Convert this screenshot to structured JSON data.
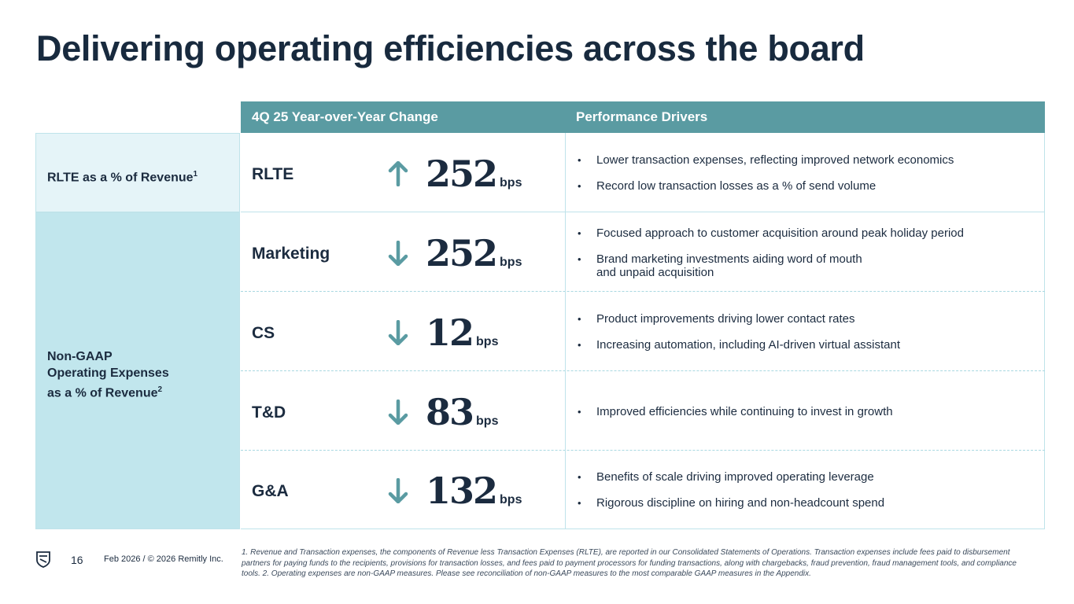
{
  "title": "Delivering operating efficiencies across the board",
  "colors": {
    "header_bg": "#5a9ba2",
    "arrow": "#5a9ba2",
    "rlte_bg": "#e5f4f8",
    "opex_bg": "#c1e6ed",
    "text": "#1b2b3f"
  },
  "header": {
    "change": "4Q 25 Year-over-Year Change",
    "drivers": "Performance Drivers"
  },
  "categories": {
    "rlte": {
      "label": "RLTE as a % of Revenue",
      "sup": "1"
    },
    "opex": {
      "line1": "Non-GAAP",
      "line2": "Operating Expenses",
      "line3": "as a % of Revenue",
      "sup": "2"
    }
  },
  "rows": [
    {
      "metric": "RLTE",
      "direction": "up-arrow-icon",
      "value": "252",
      "unit": "bps",
      "drivers": [
        "Lower transaction expenses, reflecting improved network economics",
        "Record low transaction losses as a % of send volume"
      ]
    },
    {
      "metric": "Marketing",
      "direction": "down-arrow-icon",
      "value": "252",
      "unit": "bps",
      "drivers": [
        "Focused approach to customer acquisition around peak holiday period",
        "Brand marketing investments aiding word of mouth and unpaid acquisition"
      ]
    },
    {
      "metric": "CS",
      "direction": "down-arrow-icon",
      "value": "12",
      "unit": "bps",
      "drivers": [
        "Product improvements driving lower contact rates",
        "Increasing automation, including AI-driven virtual assistant"
      ]
    },
    {
      "metric": "T&D",
      "direction": "down-arrow-icon",
      "value": "83",
      "unit": "bps",
      "drivers": [
        "Improved efficiencies while continuing to invest in growth"
      ]
    },
    {
      "metric": "G&A",
      "direction": "down-arrow-icon",
      "value": "132",
      "unit": "bps",
      "drivers": [
        "Benefits of scale driving improved operating leverage",
        "Rigorous discipline on hiring and non-headcount spend"
      ]
    }
  ],
  "footer": {
    "page_number": "16",
    "date": "Feb 2026 / © 2026 Remitly Inc.",
    "footnote": "1. Revenue and Transaction expenses, the components of Revenue less Transaction Expenses (RLTE), are reported in our Consolidated Statements of Operations. Transaction expenses include fees paid to disbursement partners for paying funds to the recipients, provisions for transaction losses, and fees paid to payment processors for funding transactions, along with chargebacks, fraud prevention, fraud management tools, and compliance tools. 2. Operating expenses are non-GAAP measures. Please see reconciliation of non-GAAP measures to the most comparable GAAP measures in the Appendix."
  }
}
